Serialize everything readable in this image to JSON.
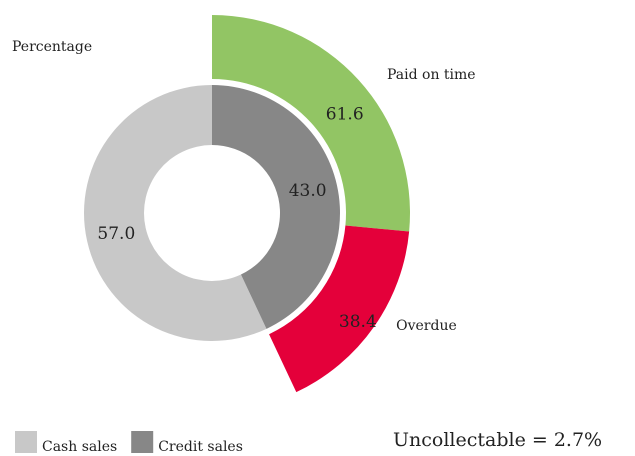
{
  "chart_data": {
    "type": "donut",
    "subtitle": "Percentage",
    "categories": [
      "Cash sales",
      "Credit sales"
    ],
    "values": [
      57.0,
      43.0
    ],
    "value_labels": [
      "57.0",
      "43.0"
    ],
    "colors": [
      "#c8c8c8",
      "#878787"
    ],
    "breakdown": {
      "categories": [
        "Paid on time",
        "Overdue"
      ],
      "values": [
        61.6,
        38.4
      ],
      "colors": [
        "#92c564",
        "#e4003a"
      ]
    },
    "annotation": "Uncollectable = 2.7%",
    "legend": "bottom-left"
  }
}
